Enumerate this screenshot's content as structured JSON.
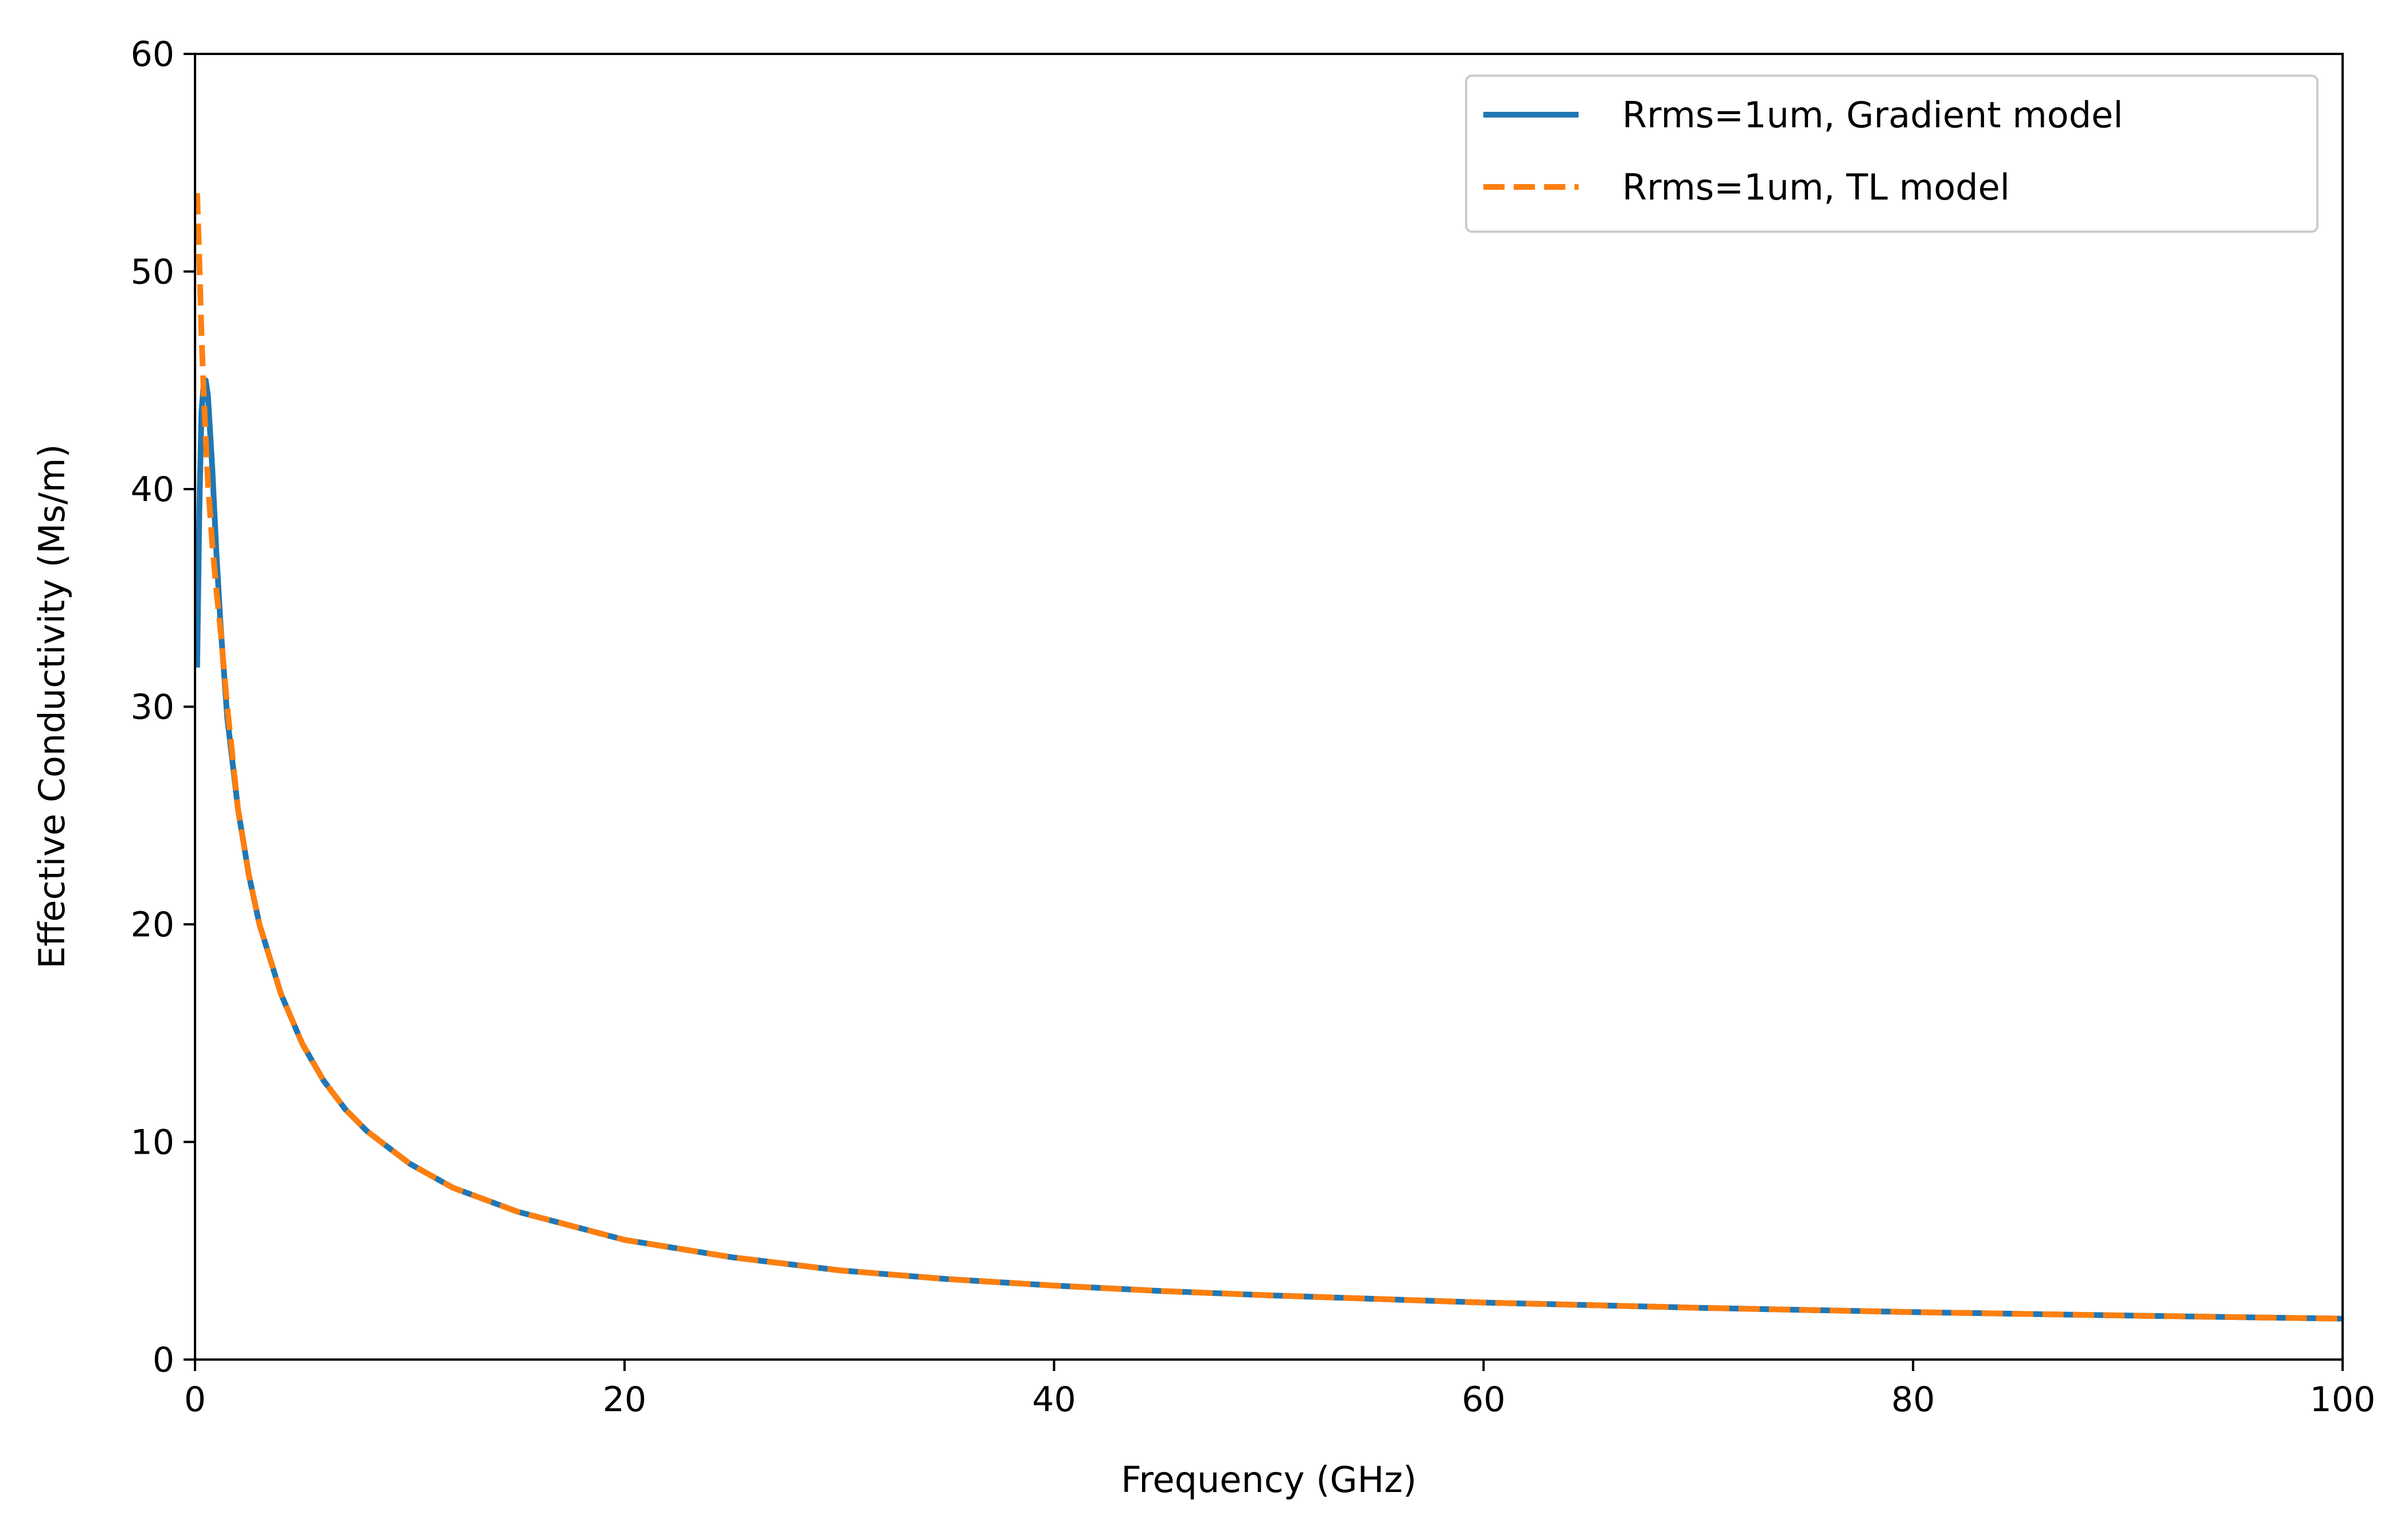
{
  "chart_data": {
    "type": "line",
    "title": "",
    "xlabel": "Frequency (GHz)",
    "ylabel": "Effective Conductivity (Ms/m)",
    "xlim": [
      0,
      100
    ],
    "ylim": [
      0,
      60
    ],
    "xticks": [
      0,
      20,
      40,
      60,
      80,
      100
    ],
    "yticks": [
      0,
      10,
      20,
      30,
      40,
      50,
      60
    ],
    "grid": false,
    "legend_position": "top-right",
    "series": [
      {
        "name": "Rrms=1um, Gradient model",
        "color": "#1f77b4",
        "style": "solid",
        "x": [
          0.1,
          0.2,
          0.3,
          0.4,
          0.5,
          0.6,
          0.8,
          1.0,
          1.2,
          1.5,
          2,
          2.5,
          3,
          4,
          5,
          6,
          7,
          8,
          10,
          12,
          15,
          20,
          25,
          30,
          35,
          40,
          45,
          50,
          60,
          70,
          80,
          90,
          100
        ],
        "y": [
          31.8,
          39,
          43.5,
          44.8,
          45.0,
          44.3,
          41,
          37,
          33.6,
          29.5,
          25.3,
          22.3,
          20.0,
          16.8,
          14.5,
          12.8,
          11.5,
          10.5,
          9.0,
          7.9,
          6.8,
          5.5,
          4.7,
          4.1,
          3.7,
          3.4,
          3.15,
          2.95,
          2.62,
          2.38,
          2.18,
          2.02,
          1.88
        ]
      },
      {
        "name": "Rrms=1um, TL model",
        "color": "#ff7f0e",
        "style": "dashed",
        "x": [
          0.1,
          0.2,
          0.3,
          0.4,
          0.5,
          0.6,
          0.8,
          1.0,
          1.2,
          1.5,
          2,
          2.5,
          3,
          4,
          5,
          6,
          7,
          8,
          10,
          12,
          15,
          20,
          25,
          30,
          35,
          40,
          45,
          50,
          60,
          70,
          80,
          90,
          100
        ],
        "y": [
          53.6,
          50.5,
          47.2,
          44.5,
          42.3,
          40.3,
          37.5,
          35.3,
          33.4,
          30.0,
          25.3,
          22.3,
          20.0,
          16.8,
          14.5,
          12.8,
          11.5,
          10.5,
          9.0,
          7.9,
          6.8,
          5.5,
          4.7,
          4.1,
          3.7,
          3.4,
          3.15,
          2.95,
          2.62,
          2.38,
          2.18,
          2.02,
          1.88
        ]
      }
    ]
  }
}
